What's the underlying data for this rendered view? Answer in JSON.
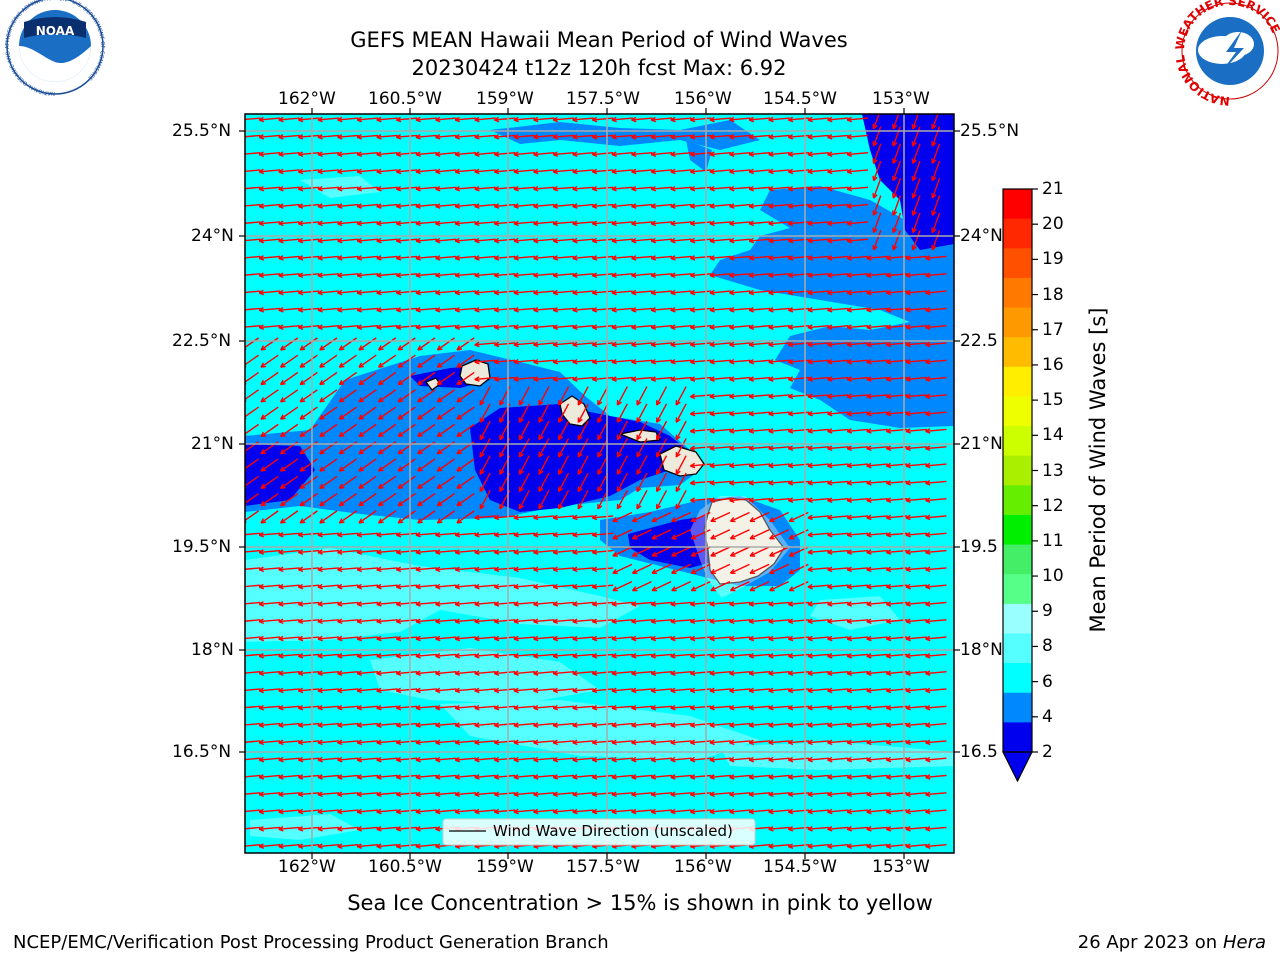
{
  "title": {
    "line1": "GEFS MEAN Hawaii Mean Period of Wind Waves",
    "line2": "20230424 t12z 120h fcst   Max: 6.92"
  },
  "logos": {
    "noaa_text": "NOAA",
    "noaa_ring": "NATIONAL OCEANIC AND ATMOSPHERIC ADMINISTRATION · U.S. DEPARTMENT OF COMMERCE",
    "nws_ring": "NATIONAL WEATHER SERVICE"
  },
  "map": {
    "lon_labels": [
      "162°W",
      "160.5°W",
      "159°W",
      "157.5°W",
      "156°W",
      "154.5°W",
      "153°W"
    ],
    "lat_labels_left": [
      "25.5°N",
      "24°N",
      "22.5°N",
      "21°N",
      "19.5°N",
      "18°N",
      "16.5°N"
    ],
    "lat_labels_right": [
      "25.5°N",
      "24°N",
      "22.5",
      "21°N",
      "19.5",
      "18°N",
      "16.5"
    ],
    "legend_label": "Wind Wave Direction (unscaled)",
    "ocean_levels_color": {
      "2-4": "#0000ee",
      "4-6": "#0088ff",
      "6-8": "#00ffff",
      "8-9": "#55ffff"
    },
    "land_color": "#eeeadb",
    "arrow_color": "#ff0000"
  },
  "colorbar": {
    "label": "Mean Period of Wind Waves [s]",
    "tick_labels": [
      "21",
      "20",
      "19",
      "18",
      "17",
      "16",
      "15",
      "14",
      "13",
      "12",
      "11",
      "10",
      "9",
      "8",
      "6",
      "4",
      "2"
    ],
    "colors_top_to_bottom": [
      "#ff0000",
      "#ff2800",
      "#ff5000",
      "#ff7800",
      "#ff9900",
      "#ffbb00",
      "#ffee00",
      "#eeff00",
      "#ccff00",
      "#aaee00",
      "#66ee00",
      "#00ee00",
      "#44ee66",
      "#55ff88",
      "#99ffff",
      "#55ffff",
      "#00ffff",
      "#0088ff",
      "#0000ee"
    ],
    "under_color": "#0000ee"
  },
  "footer": {
    "ice_note": "Sea Ice Concentration > 15% is shown in pink to yellow",
    "branch": "NCEP/EMC/Verification Post Processing Product Generation Branch",
    "date": "26 Apr 2023 on ",
    "machine": "Hera"
  }
}
